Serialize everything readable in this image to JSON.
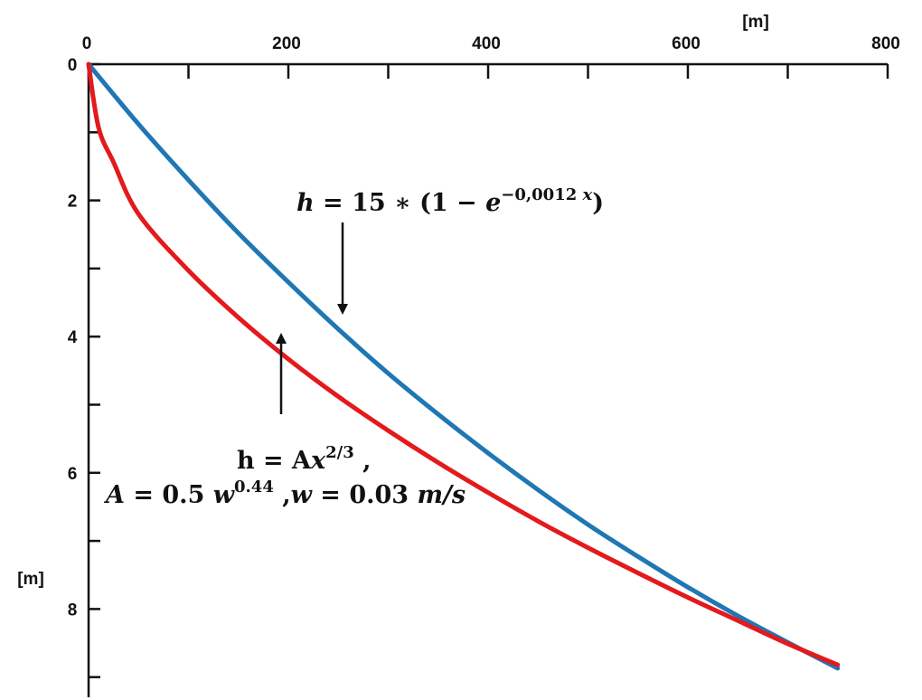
{
  "chart_data": {
    "type": "line",
    "x_axis": {
      "position": "top",
      "range": [
        0,
        800
      ],
      "major_ticks": [
        0,
        200,
        400,
        600,
        800
      ],
      "minor_ticks": [
        100,
        300,
        500,
        700
      ],
      "tick_labels": [
        "0",
        "200",
        "400",
        "600",
        "800"
      ],
      "unit": "[m]"
    },
    "y_axis": {
      "position": "left",
      "inverted": true,
      "range": [
        0,
        9
      ],
      "major_ticks": [
        0,
        2,
        4,
        6,
        8
      ],
      "minor_ticks": [
        1,
        3,
        5,
        7,
        9
      ],
      "tick_labels": [
        "0",
        "2",
        "4",
        "6",
        "8"
      ],
      "unit": "[m]"
    },
    "grid": false,
    "series": [
      {
        "color": "#1f77b4",
        "x": [
          0,
          50,
          100,
          150,
          200,
          250,
          300,
          350,
          400,
          450,
          500,
          550,
          600,
          650,
          700,
          750
        ],
        "y": [
          0,
          0.88,
          1.7,
          2.48,
          3.2,
          3.89,
          4.54,
          5.14,
          5.71,
          6.25,
          6.76,
          7.23,
          7.68,
          8.1,
          8.49,
          8.87
        ]
      },
      {
        "color": "#e31a1c",
        "x": [
          0,
          10,
          25,
          50,
          100,
          150,
          200,
          250,
          300,
          350,
          400,
          450,
          500,
          550,
          600,
          650,
          700,
          750
        ],
        "y": [
          0,
          0.93,
          1.44,
          2.2,
          3.03,
          3.72,
          4.33,
          4.88,
          5.38,
          5.85,
          6.29,
          6.71,
          7.1,
          7.47,
          7.83,
          8.17,
          8.51,
          8.82
        ]
      }
    ],
    "annotations": [
      {
        "parts": [
          {
            "text": "h",
            "style": "italic"
          },
          {
            "text": " = 15 ∗ (1 − ",
            "style": "normal"
          },
          {
            "text": "e",
            "style": "italic"
          },
          {
            "text": "−0,0012 ",
            "style": "sup"
          },
          {
            "text": "x",
            "style": "sup-italic"
          },
          {
            "text": ")",
            "style": "normal"
          }
        ],
        "arrow": "down"
      },
      {
        "line1": [
          {
            "text": "h = A",
            "style": "normal"
          },
          {
            "text": "x",
            "style": "italic"
          },
          {
            "text": "2/3",
            "style": "sup"
          },
          {
            "text": "  ,",
            "style": "normal"
          }
        ],
        "line2": [
          {
            "text": "A",
            "style": "italic"
          },
          {
            "text": " = 0.5 ",
            "style": "normal"
          },
          {
            "text": "w",
            "style": "italic"
          },
          {
            "text": "0.44",
            "style": "sup"
          },
          {
            "text": " ,",
            "style": "normal"
          },
          {
            "text": "w",
            "style": "italic"
          },
          {
            "text": " = 0.03 ",
            "style": "normal"
          },
          {
            "text": "m/s",
            "style": "italic"
          }
        ],
        "arrow": "up"
      }
    ]
  }
}
